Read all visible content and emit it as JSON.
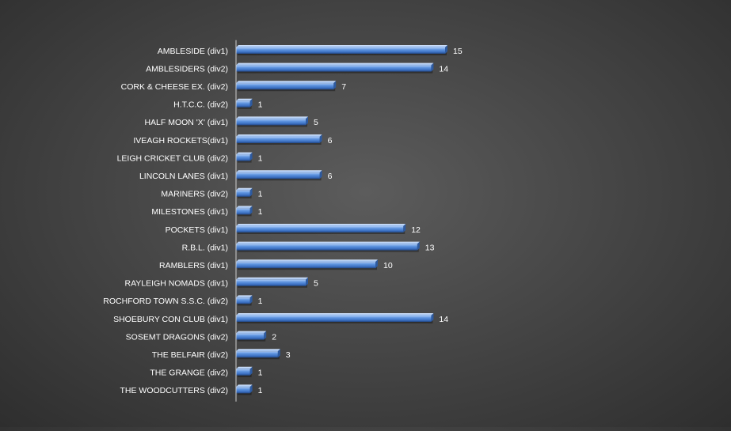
{
  "chart_data": {
    "type": "bar",
    "orientation": "horizontal",
    "title": "",
    "xlabel": "",
    "ylabel": "",
    "grid": false,
    "legend": "none",
    "categories": [
      "AMBLESIDE (div1)",
      "AMBLESIDERS (div2)",
      "CORK & CHEESE EX. (div2)",
      "H.T.C.C. (div2)",
      "HALF MOON 'X' (div1)",
      "IVEAGH ROCKETS(div1)",
      "LEIGH CRICKET CLUB (div2)",
      "LINCOLN LANES (div1)",
      "MARINERS (div2)",
      "MILESTONES (div1)",
      "POCKETS (div1)",
      "R.B.L. (div1)",
      "RAMBLERS (div1)",
      "RAYLEIGH NOMADS (div1)",
      "ROCHFORD TOWN S.S.C. (div2)",
      "SHOEBURY CON CLUB (div1)",
      "SOSEMT DRAGONS (div2)",
      "THE BELFAIR (div2)",
      "THE GRANGE (div2)",
      "THE WOODCUTTERS (div2)"
    ],
    "values": [
      15,
      14,
      7,
      1,
      5,
      6,
      1,
      6,
      1,
      1,
      12,
      13,
      10,
      5,
      1,
      14,
      2,
      3,
      1,
      1
    ],
    "xlim": [
      0,
      16
    ],
    "bar_color": "#4f86d8",
    "background_color": "#474747",
    "text_color": "#ffffff"
  }
}
